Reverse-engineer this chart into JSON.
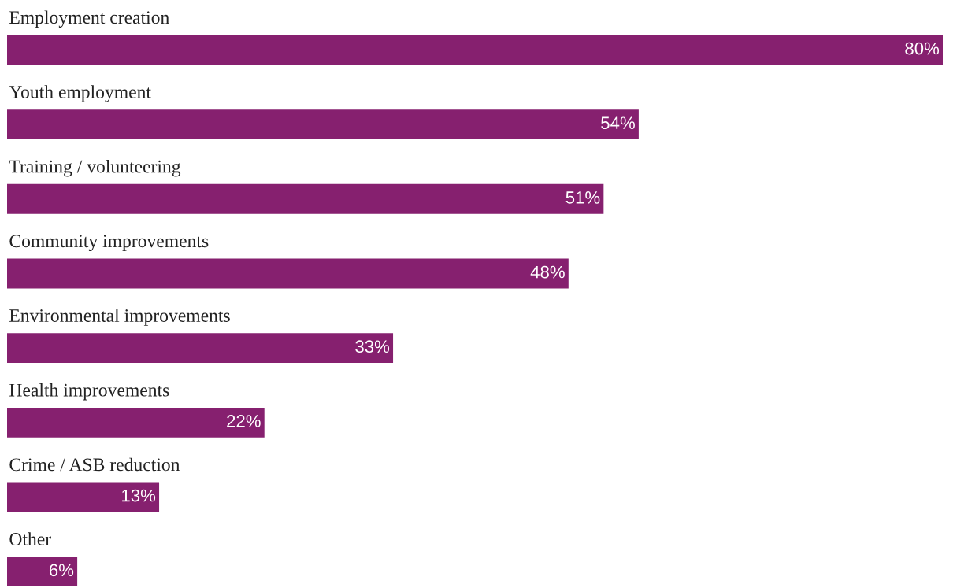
{
  "chart_data": {
    "type": "bar",
    "orientation": "horizontal",
    "categories": [
      "Employment creation",
      "Youth employment",
      "Training / volunteering",
      "Community improvements",
      "Environmental improvements",
      "Health improvements",
      "Crime / ASB reduction",
      "Other"
    ],
    "values": [
      80,
      54,
      51,
      48,
      33,
      22,
      13,
      6
    ],
    "value_labels": [
      "80%",
      "54%",
      "51%",
      "48%",
      "33%",
      "22%",
      "13%",
      "6%"
    ],
    "color": "#86206f"
  }
}
